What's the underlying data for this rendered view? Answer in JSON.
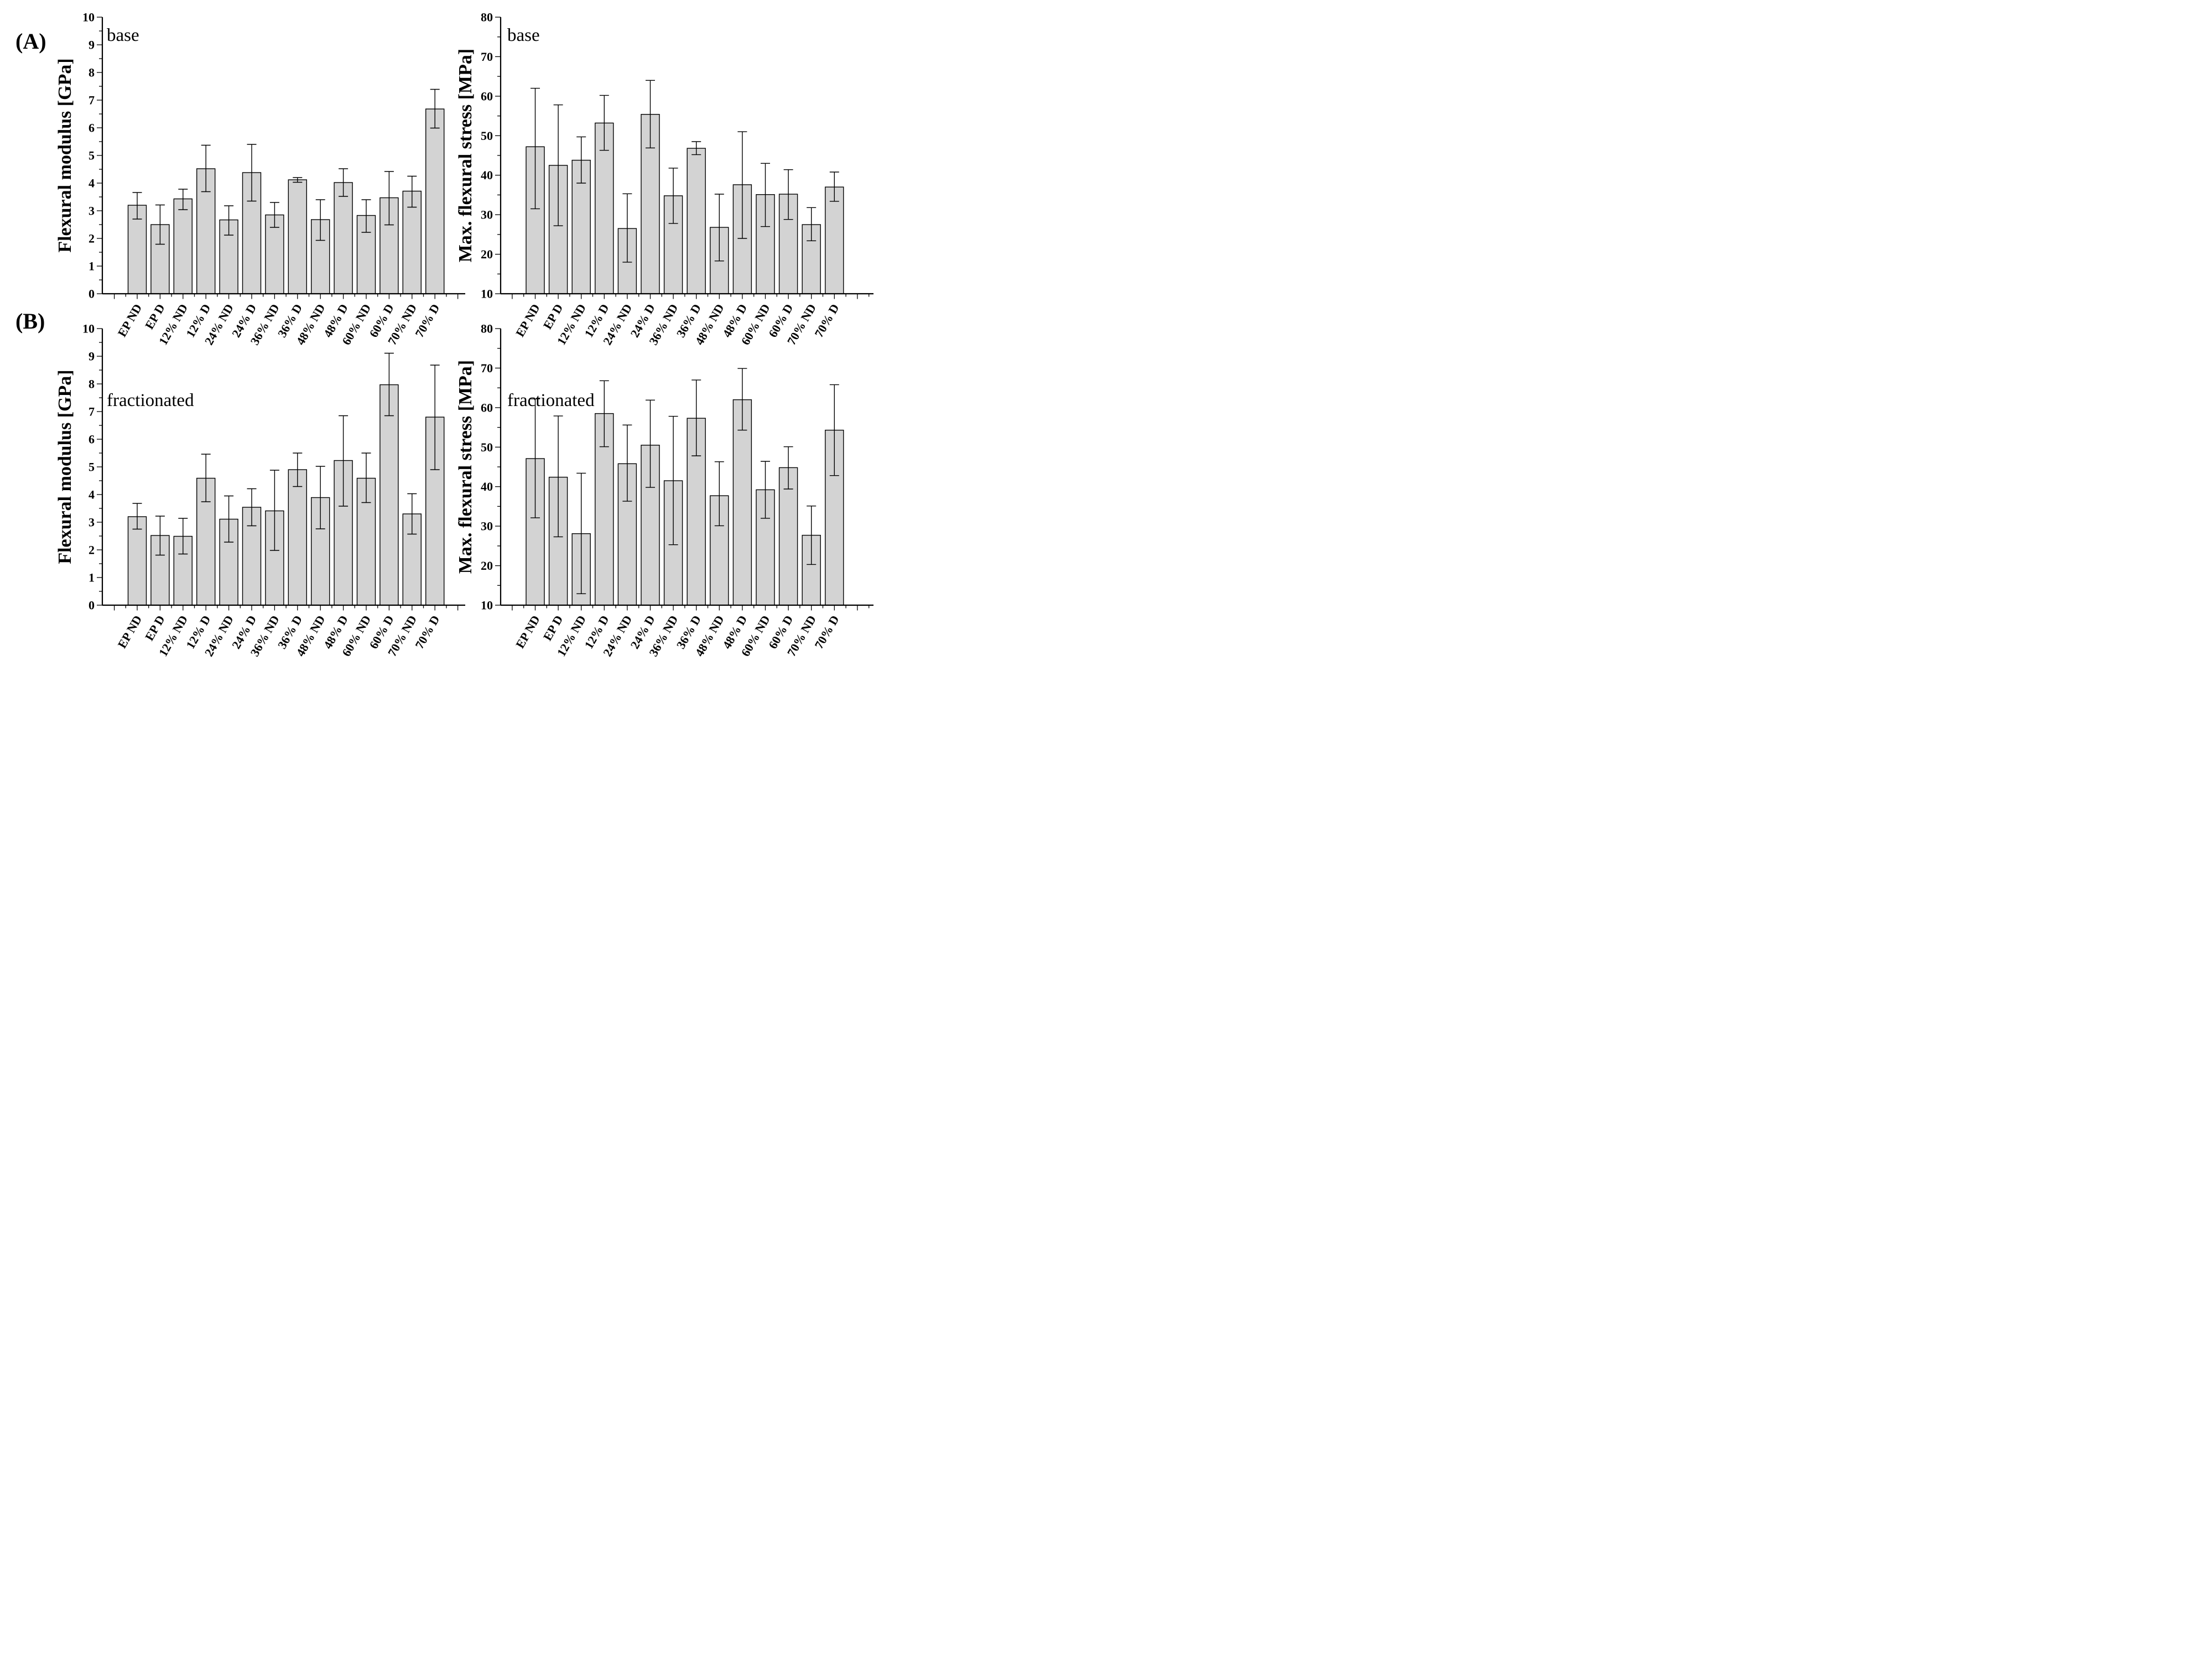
{
  "panel_labels": [
    "(A)",
    "(B)"
  ],
  "categories": [
    "EP ND",
    "EP D",
    "12% ND",
    "12% D",
    "24% ND",
    "24% D",
    "36% ND",
    "36% D",
    "48% ND",
    "48% D",
    "60% ND",
    "60% D",
    "70% ND",
    "70% D"
  ],
  "colors": {
    "bar_fill": "#d3d3d3",
    "stroke": "#000000",
    "background": "#ffffff"
  },
  "chart_data": [
    {
      "id": "flexural-modulus-base",
      "type": "bar",
      "panel": "A",
      "annotation": "base",
      "xlabel": "",
      "ylabel": "Flexural modulus [GPa]",
      "ylim": [
        0,
        10
      ],
      "y_major": 1,
      "y_minor": 0.5,
      "y_ticks": [
        0,
        1,
        2,
        3,
        4,
        5,
        6,
        7,
        8,
        9,
        10
      ],
      "grid": false,
      "legend": null,
      "values": [
        3.2,
        2.5,
        3.43,
        4.52,
        2.67,
        4.38,
        2.85,
        4.12,
        2.68,
        4.02,
        2.83,
        3.47,
        3.71,
        6.68
      ],
      "err_low": [
        2.7,
        1.79,
        3.04,
        3.69,
        2.12,
        3.35,
        2.4,
        4.03,
        1.93,
        3.52,
        2.22,
        2.49,
        3.13,
        5.99
      ],
      "err_high": [
        3.66,
        3.21,
        3.78,
        5.37,
        3.18,
        5.4,
        3.3,
        4.2,
        3.4,
        4.52,
        3.4,
        4.42,
        4.25,
        7.39
      ]
    },
    {
      "id": "max-flexural-stress-base",
      "type": "bar",
      "panel": "A",
      "annotation": "base",
      "xlabel": "",
      "ylabel": "Max. flexural stress [MPa]",
      "ylim": [
        10,
        80
      ],
      "y_major": 10,
      "y_minor": 5,
      "y_ticks": [
        10,
        20,
        30,
        40,
        50,
        60,
        70,
        80
      ],
      "grid": false,
      "legend": null,
      "values": [
        47.2,
        42.5,
        43.8,
        53.2,
        26.5,
        55.4,
        34.8,
        46.8,
        26.8,
        37.6,
        35.1,
        35.2,
        27.5,
        37.0
      ],
      "err_low": [
        31.5,
        27.2,
        38.0,
        46.3,
        18.0,
        46.9,
        27.8,
        45.2,
        18.3,
        24.0,
        27.0,
        28.8,
        23.4,
        33.4
      ],
      "err_high": [
        62.0,
        57.8,
        49.7,
        60.2,
        35.3,
        64.0,
        41.8,
        48.5,
        35.2,
        51.0,
        43.0,
        41.4,
        31.8,
        40.8
      ]
    },
    {
      "id": "flexural-modulus-fractionated",
      "type": "bar",
      "panel": "B",
      "annotation": "fractionated",
      "xlabel": "",
      "ylabel": "Flexural modulus [GPa]",
      "ylim": [
        0,
        10
      ],
      "y_major": 1,
      "y_minor": 0.5,
      "y_ticks": [
        0,
        1,
        2,
        3,
        4,
        5,
        6,
        7,
        8,
        9,
        10
      ],
      "grid": false,
      "legend": null,
      "values": [
        3.2,
        2.52,
        2.49,
        4.59,
        3.11,
        3.54,
        3.41,
        4.9,
        3.89,
        5.23,
        4.59,
        7.97,
        3.3,
        6.8
      ],
      "err_low": [
        2.75,
        1.81,
        1.85,
        3.74,
        2.28,
        2.87,
        1.98,
        4.29,
        2.76,
        3.58,
        3.71,
        6.85,
        2.57,
        4.9
      ],
      "err_high": [
        3.68,
        3.22,
        3.14,
        5.46,
        3.95,
        4.21,
        4.88,
        5.5,
        5.02,
        6.85,
        5.5,
        9.11,
        4.03,
        8.68
      ]
    },
    {
      "id": "max-flexural-stress-fractionated",
      "type": "bar",
      "panel": "B",
      "annotation": "fractionated",
      "xlabel": "",
      "ylabel": "Max. flexural stress [MPa]",
      "ylim": [
        10,
        80
      ],
      "y_major": 10,
      "y_minor": 5,
      "y_ticks": [
        10,
        20,
        30,
        40,
        50,
        60,
        70,
        80
      ],
      "grid": false,
      "legend": null,
      "values": [
        47.1,
        42.4,
        28.1,
        58.5,
        45.8,
        50.5,
        41.5,
        57.3,
        37.7,
        62.0,
        39.2,
        44.8,
        27.7,
        54.3
      ],
      "err_low": [
        32.1,
        27.3,
        12.9,
        50.1,
        36.3,
        39.8,
        25.3,
        47.8,
        30.1,
        54.3,
        32.0,
        39.4,
        20.3,
        42.8
      ],
      "err_high": [
        62.2,
        57.9,
        43.4,
        66.8,
        55.6,
        61.9,
        57.8,
        67.0,
        46.3,
        69.9,
        46.4,
        50.1,
        35.1,
        65.8
      ]
    }
  ]
}
